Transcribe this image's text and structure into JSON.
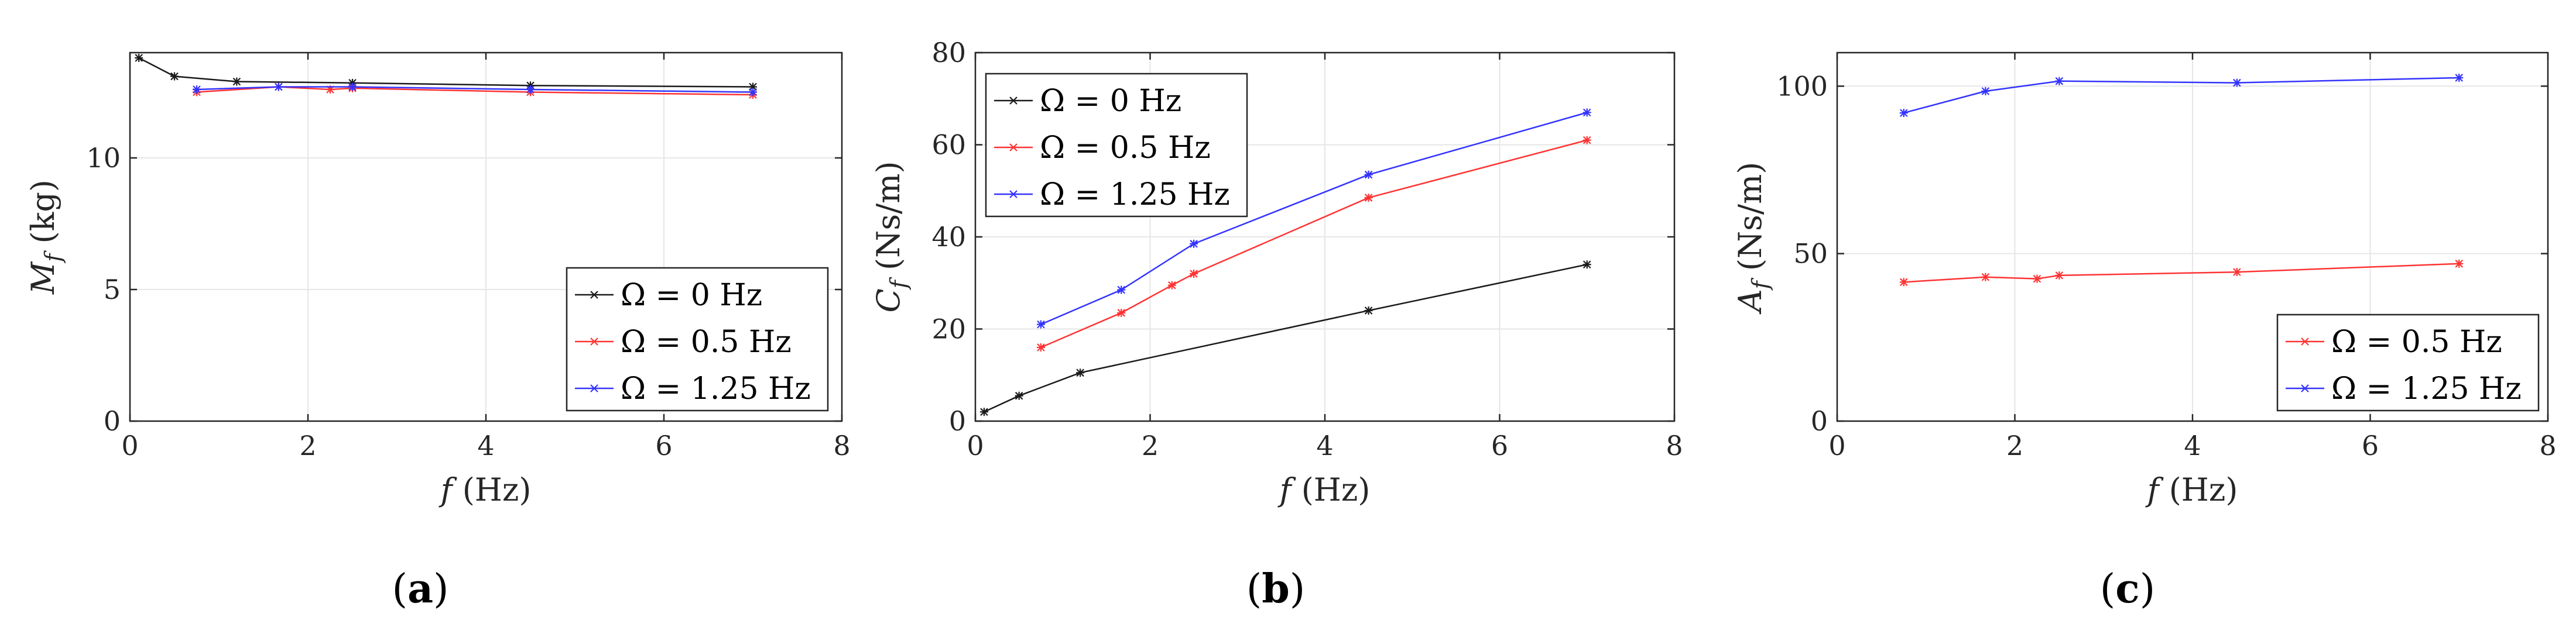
{
  "chart_data": [
    {
      "type": "line",
      "panel_label": "a",
      "xlabel": "f (Hz)",
      "ylabel": "M_f (kg)",
      "ylabel_parts": {
        "sym": "M",
        "sub": "f",
        "unit": "(kg)"
      },
      "xlim": [
        0,
        8
      ],
      "ylim": [
        0,
        14
      ],
      "xticks": [
        0,
        2,
        4,
        6,
        8
      ],
      "yticks": [
        0,
        5,
        10
      ],
      "grid": true,
      "legend_position": "bottom-right",
      "series": [
        {
          "name": "Ω = 0 Hz",
          "color": "#1a1a1a",
          "x": [
            0.1,
            0.5,
            1.2,
            2.5,
            4.5,
            7.0
          ],
          "y": [
            13.8,
            13.1,
            12.9,
            12.85,
            12.75,
            12.7
          ]
        },
        {
          "name": "Ω = 0.5 Hz",
          "color": "#ff3333",
          "x": [
            0.75,
            1.67,
            2.25,
            2.5,
            4.5,
            7.0
          ],
          "y": [
            12.5,
            12.7,
            12.6,
            12.65,
            12.5,
            12.4
          ]
        },
        {
          "name": "Ω = 1.25 Hz",
          "color": "#3333ff",
          "x": [
            0.75,
            1.67,
            2.5,
            4.5,
            7.0
          ],
          "y": [
            12.6,
            12.7,
            12.7,
            12.6,
            12.5
          ]
        }
      ]
    },
    {
      "type": "line",
      "panel_label": "b",
      "xlabel": "f (Hz)",
      "ylabel": "C_f (Ns/m)",
      "ylabel_parts": {
        "sym": "C",
        "sub": "f",
        "unit": "(Ns/m)"
      },
      "xlim": [
        0,
        8
      ],
      "ylim": [
        0,
        80
      ],
      "xticks": [
        0,
        2,
        4,
        6,
        8
      ],
      "yticks": [
        0,
        20,
        40,
        60,
        80
      ],
      "grid": true,
      "legend_position": "top-left",
      "series": [
        {
          "name": "Ω = 0 Hz",
          "color": "#1a1a1a",
          "x": [
            0.1,
            0.5,
            1.2,
            4.5,
            7.0
          ],
          "y": [
            2,
            5.5,
            10.5,
            24,
            34
          ]
        },
        {
          "name": "Ω = 0.5 Hz",
          "color": "#ff3333",
          "x": [
            0.75,
            1.67,
            2.25,
            2.5,
            4.5,
            7.0
          ],
          "y": [
            16,
            23.5,
            29.5,
            32,
            48.5,
            61
          ]
        },
        {
          "name": "Ω = 1.25 Hz",
          "color": "#3333ff",
          "x": [
            0.75,
            1.67,
            2.5,
            4.5,
            7.0
          ],
          "y": [
            21,
            28.5,
            38.5,
            53.5,
            67
          ]
        }
      ]
    },
    {
      "type": "line",
      "panel_label": "c",
      "xlabel": "f (Hz)",
      "ylabel": "A_f (Ns/m)",
      "ylabel_parts": {
        "sym": "A",
        "sub": "f",
        "unit": "(Ns/m)"
      },
      "xlim": [
        0,
        8
      ],
      "ylim": [
        0,
        110
      ],
      "xticks": [
        0,
        2,
        4,
        6,
        8
      ],
      "yticks": [
        0,
        50,
        100
      ],
      "grid": true,
      "legend_position": "bottom-right",
      "series": [
        {
          "name": "Ω = 0.5 Hz",
          "color": "#ff3333",
          "x": [
            0.75,
            1.67,
            2.25,
            2.5,
            4.5,
            7.0
          ],
          "y": [
            41.5,
            43,
            42.5,
            43.5,
            44.5,
            47
          ]
        },
        {
          "name": "Ω = 1.25 Hz",
          "color": "#3333ff",
          "x": [
            0.75,
            1.67,
            2.5,
            4.5,
            7.0
          ],
          "y": [
            92,
            98.5,
            101.5,
            101,
            102.5
          ]
        }
      ]
    }
  ]
}
